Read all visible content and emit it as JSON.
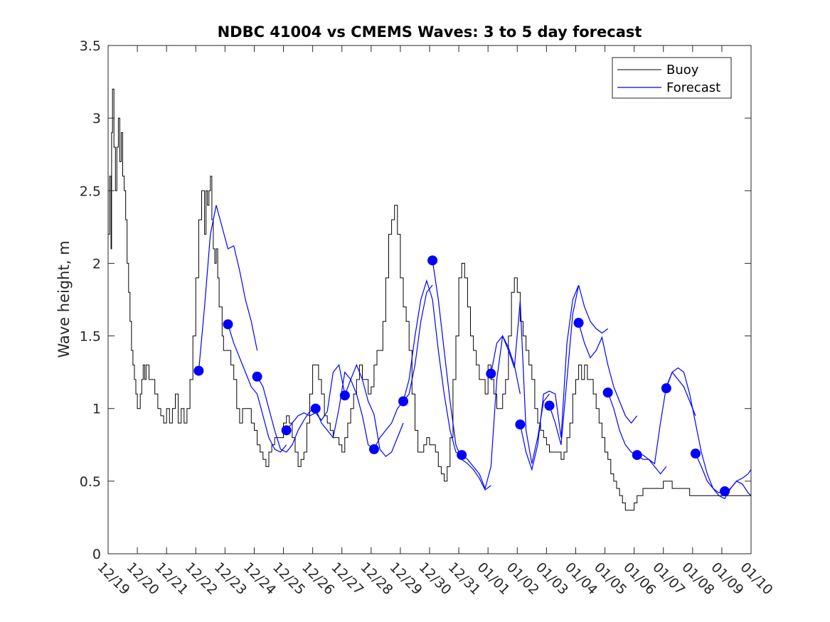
{
  "chart_data": {
    "type": "line",
    "title": "NDBC 41004 vs CMEMS Waves: 3 to 5 day forecast",
    "xlabel": "",
    "ylabel": "Wave height, m",
    "xlim": [
      0,
      22
    ],
    "ylim": [
      0,
      3.5
    ],
    "yticks": [
      0,
      0.5,
      1,
      1.5,
      2,
      2.5,
      3,
      3.5
    ],
    "ytick_labels": [
      "0",
      "0.5",
      "1",
      "1.5",
      "2",
      "2.5",
      "3",
      "3.5"
    ],
    "xtick_labels": [
      "12/19",
      "12/20",
      "12/21",
      "12/22",
      "12/23",
      "12/24",
      "12/25",
      "12/26",
      "12/27",
      "12/28",
      "12/29",
      "12/30",
      "12/31",
      "01/01",
      "01/02",
      "01/03",
      "01/04",
      "01/05",
      "01/06",
      "01/07",
      "01/08",
      "01/09",
      "01/10"
    ],
    "legend": {
      "location": "top-right",
      "entries": [
        {
          "name": "Buoy",
          "color": "#000000"
        },
        {
          "name": "Forecast",
          "color": "#0000ff"
        }
      ]
    },
    "series": [
      {
        "name": "Buoy",
        "color": "#000000",
        "x": [
          0.0,
          0.05,
          0.1,
          0.12,
          0.15,
          0.2,
          0.25,
          0.3,
          0.35,
          0.4,
          0.45,
          0.5,
          0.55,
          0.6,
          0.65,
          0.7,
          0.75,
          0.8,
          0.85,
          0.9,
          0.95,
          1.0,
          1.05,
          1.1,
          1.15,
          1.2,
          1.25,
          1.3,
          1.4,
          1.5,
          1.6,
          1.7,
          1.8,
          1.9,
          2.0,
          2.1,
          2.2,
          2.3,
          2.4,
          2.5,
          2.6,
          2.7,
          2.8,
          2.9,
          3.0,
          3.1,
          3.2,
          3.3,
          3.35,
          3.4,
          3.45,
          3.5,
          3.55,
          3.6,
          3.65,
          3.7,
          3.75,
          3.8,
          3.85,
          3.9,
          3.95,
          4.0,
          4.1,
          4.2,
          4.3,
          4.4,
          4.5,
          4.6,
          4.7,
          4.8,
          4.9,
          5.0,
          5.1,
          5.2,
          5.3,
          5.4,
          5.5,
          5.6,
          5.7,
          5.8,
          5.9,
          6.0,
          6.1,
          6.2,
          6.3,
          6.4,
          6.5,
          6.6,
          6.7,
          6.8,
          6.9,
          7.0,
          7.1,
          7.2,
          7.3,
          7.4,
          7.5,
          7.6,
          7.7,
          7.8,
          7.9,
          8.0,
          8.1,
          8.2,
          8.3,
          8.4,
          8.5,
          8.6,
          8.7,
          8.8,
          8.9,
          9.0,
          9.1,
          9.2,
          9.3,
          9.4,
          9.5,
          9.6,
          9.7,
          9.8,
          9.9,
          10.0,
          10.1,
          10.2,
          10.3,
          10.4,
          10.5,
          10.6,
          10.7,
          10.8,
          10.9,
          11.0,
          11.1,
          11.2,
          11.3,
          11.4,
          11.5,
          11.6,
          11.7,
          11.8,
          11.9,
          12.0,
          12.1,
          12.2,
          12.3,
          12.4,
          12.5,
          12.6,
          12.7,
          12.8,
          12.9,
          13.0,
          13.1,
          13.2,
          13.3,
          13.4,
          13.5,
          13.6,
          13.7,
          13.8,
          13.9,
          14.0,
          14.1,
          14.2,
          14.3,
          14.4,
          14.5,
          14.6,
          14.7,
          14.8,
          14.9,
          15.0,
          15.1,
          15.2,
          15.3,
          15.4,
          15.5,
          15.6,
          15.7,
          15.8,
          15.9,
          16.0,
          16.1,
          16.2,
          16.3,
          16.4,
          16.5,
          16.6,
          16.7,
          16.8,
          16.9,
          17.0,
          17.1,
          17.2,
          17.3,
          17.4,
          17.5,
          17.6,
          17.7,
          17.8,
          17.9,
          18.0,
          18.1,
          18.2,
          18.3,
          18.4,
          18.5,
          18.6,
          18.7,
          18.8,
          18.9,
          19.0,
          19.1,
          19.2,
          19.3,
          19.4,
          19.5,
          19.6,
          19.7,
          19.8,
          19.9,
          20.0,
          20.1,
          20.2,
          20.3,
          20.4,
          20.5,
          20.6,
          20.7,
          20.8,
          20.9,
          21.0,
          21.1,
          21.2,
          21.3,
          21.4,
          21.5,
          21.6,
          21.7,
          21.8,
          21.9,
          22.0
        ],
        "values": [
          2.2,
          2.6,
          2.1,
          2.9,
          3.2,
          2.8,
          2.5,
          2.8,
          3.0,
          2.7,
          2.9,
          2.6,
          2.5,
          2.3,
          2.0,
          1.8,
          1.6,
          1.4,
          1.3,
          1.2,
          1.1,
          1.0,
          1.0,
          1.1,
          1.2,
          1.3,
          1.2,
          1.3,
          1.2,
          1.2,
          1.1,
          1.0,
          0.95,
          0.9,
          1.0,
          0.9,
          1.0,
          1.1,
          0.9,
          1.0,
          0.9,
          1.0,
          1.2,
          1.5,
          1.9,
          2.3,
          2.5,
          2.2,
          2.5,
          2.4,
          2.5,
          2.6,
          2.3,
          2.1,
          2.0,
          2.1,
          1.9,
          1.7,
          1.7,
          1.5,
          1.4,
          1.4,
          1.4,
          1.3,
          1.2,
          1.0,
          0.9,
          1.0,
          1.0,
          1.0,
          0.9,
          0.85,
          0.75,
          0.7,
          0.65,
          0.6,
          0.7,
          0.75,
          0.8,
          0.8,
          0.8,
          0.9,
          0.95,
          0.9,
          0.8,
          0.7,
          0.6,
          0.65,
          0.7,
          0.9,
          1.1,
          1.3,
          1.3,
          1.2,
          1.1,
          0.95,
          0.9,
          0.85,
          0.8,
          0.8,
          0.75,
          0.7,
          0.8,
          0.9,
          1.0,
          1.1,
          1.2,
          1.3,
          1.2,
          1.2,
          1.1,
          1.15,
          1.3,
          1.4,
          1.4,
          1.6,
          1.9,
          2.2,
          2.3,
          2.4,
          2.2,
          1.9,
          1.7,
          1.6,
          1.4,
          1.1,
          0.85,
          0.7,
          0.7,
          0.75,
          0.8,
          0.75,
          0.75,
          0.7,
          0.6,
          0.55,
          0.5,
          0.6,
          0.8,
          1.2,
          1.5,
          1.9,
          2.0,
          1.9,
          1.7,
          1.5,
          1.4,
          1.3,
          1.2,
          1.2,
          1.1,
          1.3,
          1.2,
          1.1,
          1.0,
          1.0,
          1.1,
          1.2,
          1.5,
          1.8,
          1.9,
          1.8,
          1.6,
          1.5,
          1.4,
          1.3,
          1.2,
          1.0,
          0.9,
          0.85,
          0.8,
          0.75,
          0.7,
          0.7,
          0.7,
          0.7,
          0.65,
          0.7,
          0.8,
          0.9,
          1.1,
          1.2,
          1.3,
          1.2,
          1.3,
          1.2,
          1.2,
          1.1,
          1.0,
          0.9,
          0.8,
          0.7,
          0.65,
          0.55,
          0.5,
          0.45,
          0.4,
          0.35,
          0.3,
          0.3,
          0.3,
          0.35,
          0.4,
          0.4,
          0.45,
          0.45,
          0.45,
          0.45,
          0.45,
          0.45,
          0.45,
          0.5,
          0.5,
          0.5,
          0.45,
          0.45,
          0.45,
          0.45,
          0.45,
          0.45,
          0.4,
          0.4,
          0.4,
          0.4,
          0.4,
          0.4,
          0.4,
          0.4,
          0.4,
          0.4,
          0.4,
          0.4,
          0.4,
          0.4,
          0.4,
          0.4,
          0.4,
          0.4,
          0.4,
          0.4,
          0.4,
          0.4
        ]
      },
      {
        "name": "Forecast",
        "color": "#0000ff",
        "segments": [
          {
            "x": [
              3.1,
              3.3,
              3.5,
              3.7,
              3.9,
              4.1,
              4.3,
              4.5,
              4.7,
              4.9,
              5.1
            ],
            "values": [
              1.26,
              1.7,
              2.2,
              2.4,
              2.25,
              2.1,
              2.12,
              1.95,
              1.75,
              1.6,
              1.4
            ]
          },
          {
            "x": [
              4.1,
              4.3,
              4.5,
              4.7,
              4.9,
              5.1,
              5.3,
              5.5,
              5.7,
              5.9,
              6.1
            ],
            "values": [
              1.58,
              1.45,
              1.35,
              1.25,
              1.15,
              1.1,
              0.95,
              0.8,
              0.72,
              0.7,
              0.75
            ]
          },
          {
            "x": [
              5.1,
              5.3,
              5.5,
              5.7,
              5.9,
              6.1,
              6.3,
              6.5,
              6.7,
              6.9,
              7.1
            ],
            "values": [
              1.22,
              1.15,
              1.0,
              0.85,
              0.72,
              0.7,
              0.75,
              0.85,
              0.92,
              0.98,
              1.0
            ]
          },
          {
            "x": [
              6.1,
              6.3,
              6.5,
              6.7,
              6.9,
              7.1,
              7.3,
              7.5,
              7.7,
              7.9,
              8.1
            ],
            "values": [
              0.85,
              0.9,
              0.95,
              0.97,
              0.95,
              0.97,
              0.92,
              0.98,
              1.25,
              1.3,
              1.1
            ]
          },
          {
            "x": [
              7.1,
              7.3,
              7.5,
              7.7,
              7.9,
              8.1,
              8.3,
              8.5,
              8.7,
              8.9,
              9.1
            ],
            "values": [
              1.0,
              0.9,
              0.85,
              0.8,
              1.0,
              1.25,
              1.2,
              1.1,
              0.95,
              0.75,
              0.72
            ]
          },
          {
            "x": [
              8.1,
              8.3,
              8.5,
              8.7,
              8.9,
              9.1,
              9.3,
              9.5,
              9.7,
              9.9,
              10.1
            ],
            "values": [
              1.09,
              1.2,
              1.3,
              1.2,
              1.05,
              0.96,
              0.72,
              0.67,
              0.7,
              0.8,
              0.9
            ]
          },
          {
            "x": [
              9.1,
              9.3,
              9.5,
              9.7,
              9.9,
              10.1,
              10.3,
              10.5,
              10.7,
              10.9,
              11.1
            ],
            "values": [
              0.72,
              0.8,
              0.85,
              0.9,
              1.0,
              1.05,
              1.1,
              1.3,
              1.6,
              1.8,
              1.85
            ]
          },
          {
            "x": [
              10.1,
              10.3,
              10.5,
              10.7,
              10.9,
              11.1,
              11.3,
              11.5,
              11.7,
              11.9,
              12.1
            ],
            "values": [
              1.05,
              1.2,
              1.5,
              1.75,
              1.88,
              1.75,
              1.4,
              1.1,
              0.85,
              0.7,
              0.68
            ]
          },
          {
            "x": [
              11.1,
              11.3,
              11.5,
              11.7,
              11.9,
              12.1,
              12.3,
              12.5,
              12.7,
              12.9,
              13.1
            ],
            "values": [
              2.02,
              1.75,
              1.4,
              1.05,
              0.75,
              0.65,
              0.62,
              0.58,
              0.52,
              0.44,
              0.47
            ]
          },
          {
            "x": [
              12.1,
              12.3,
              12.5,
              12.7,
              12.9,
              13.1,
              13.3,
              13.5,
              13.7,
              13.9,
              14.1
            ],
            "values": [
              0.68,
              0.65,
              0.6,
              0.55,
              0.45,
              0.6,
              1.2,
              1.5,
              1.42,
              1.3,
              1.1
            ]
          },
          {
            "x": [
              13.1,
              13.3,
              13.5,
              13.7,
              13.9,
              14.1,
              14.3,
              14.5,
              14.7,
              14.9,
              15.1
            ],
            "values": [
              1.24,
              1.45,
              1.5,
              1.4,
              1.28,
              1.74,
              0.85,
              0.62,
              0.8,
              1.05,
              1.1
            ]
          },
          {
            "x": [
              14.1,
              14.3,
              14.5,
              14.7,
              14.9,
              15.1,
              15.3,
              15.5,
              15.7,
              15.9,
              16.1
            ],
            "values": [
              0.89,
              0.7,
              0.58,
              0.75,
              1.1,
              1.12,
              1.1,
              0.8,
              1.45,
              1.75,
              1.85
            ]
          },
          {
            "x": [
              15.1,
              15.3,
              15.5,
              15.7,
              15.9,
              16.1,
              16.3,
              16.5,
              16.7,
              16.9,
              17.1
            ],
            "values": [
              1.02,
              0.9,
              0.75,
              1.2,
              1.65,
              1.85,
              1.7,
              1.6,
              1.55,
              1.52,
              1.55
            ]
          },
          {
            "x": [
              16.1,
              16.3,
              16.5,
              16.7,
              16.9,
              17.1,
              17.3,
              17.5,
              17.7,
              17.9,
              18.1
            ],
            "values": [
              1.59,
              1.45,
              1.35,
              1.4,
              1.49,
              1.3,
              1.15,
              1.05,
              0.95,
              0.9,
              0.95
            ]
          },
          {
            "x": [
              17.1,
              17.3,
              17.5,
              17.7,
              17.9,
              18.1,
              18.3,
              18.5,
              18.7,
              18.9,
              19.1
            ],
            "values": [
              1.11,
              1.0,
              0.85,
              0.75,
              0.7,
              0.68,
              0.65,
              0.65,
              0.6,
              0.55,
              0.6
            ]
          },
          {
            "x": [
              18.1,
              18.3,
              18.5,
              18.7,
              18.9,
              19.1,
              19.3,
              19.5,
              19.7,
              19.9,
              20.1
            ],
            "values": [
              0.68,
              0.68,
              0.65,
              0.62,
              0.9,
              1.15,
              1.25,
              1.2,
              1.15,
              1.05,
              0.95
            ]
          },
          {
            "x": [
              19.1,
              19.3,
              19.5,
              19.7,
              19.9,
              20.1,
              20.3,
              20.5,
              20.7,
              20.9,
              21.1
            ],
            "values": [
              1.14,
              1.25,
              1.28,
              1.25,
              1.1,
              0.9,
              0.7,
              0.55,
              0.45,
              0.42,
              0.45
            ]
          },
          {
            "x": [
              20.1,
              20.3,
              20.5,
              20.7,
              20.9,
              21.1,
              21.3,
              21.5,
              21.7,
              21.9,
              22.0
            ],
            "values": [
              0.69,
              0.6,
              0.5,
              0.45,
              0.4,
              0.38,
              0.45,
              0.5,
              0.52,
              0.55,
              0.58
            ]
          },
          {
            "x": [
              21.1,
              21.3,
              21.5,
              21.7,
              21.9,
              22.0
            ],
            "values": [
              0.43,
              0.45,
              0.5,
              0.48,
              0.42,
              0.4
            ]
          }
        ],
        "markers": {
          "x": [
            3.1,
            4.1,
            5.1,
            6.1,
            7.1,
            8.1,
            9.1,
            10.1,
            11.1,
            12.1,
            13.1,
            14.1,
            15.1,
            16.1,
            17.1,
            18.1,
            19.1,
            20.1,
            21.1
          ],
          "values": [
            1.26,
            1.58,
            1.22,
            0.85,
            1.0,
            1.09,
            0.72,
            1.05,
            2.02,
            0.68,
            1.24,
            0.89,
            1.02,
            1.59,
            1.11,
            0.68,
            1.14,
            0.69,
            0.43
          ]
        }
      }
    ]
  }
}
